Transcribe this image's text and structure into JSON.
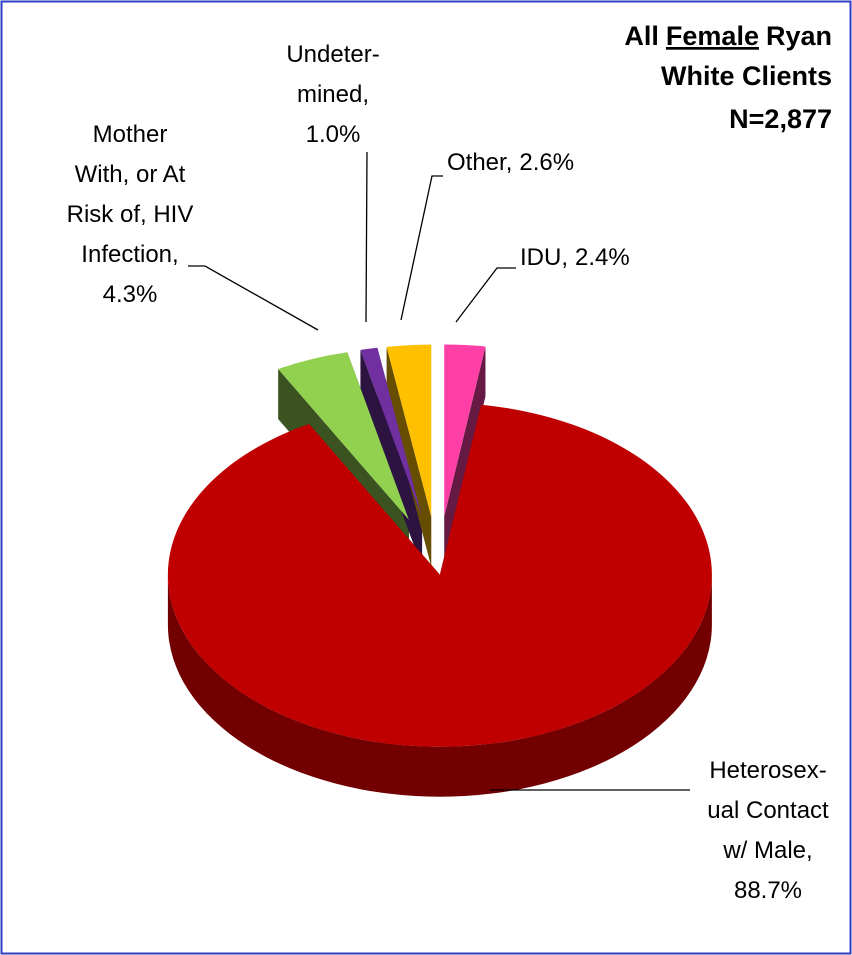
{
  "chart_data": {
    "type": "pie",
    "title": [
      [
        "All",
        "Female",
        "Ryan"
      ],
      [
        "White Clients"
      ]
    ],
    "title_underline": [
      0,
      1
    ],
    "subtitle": "N=2,877",
    "categories": [
      [
        "IDU,"
      ],
      [
        "Heterosex-",
        "ual Contact",
        "w/ Male,"
      ],
      [
        "Mother",
        "With, or At",
        "Risk of, HIV",
        "Infection,"
      ],
      [
        "Undeter-",
        "mined,"
      ],
      [
        "Other,"
      ]
    ],
    "values": [
      2.4,
      88.7,
      4.3,
      1.0,
      2.6
    ],
    "value_labels": [
      "2.4%",
      "88.7%",
      "4.3%",
      "1.0%",
      "2.6%"
    ],
    "colors": [
      "#ff3fa6",
      "#c00000",
      "#92d050",
      "#7030a0",
      "#ffc000"
    ]
  }
}
